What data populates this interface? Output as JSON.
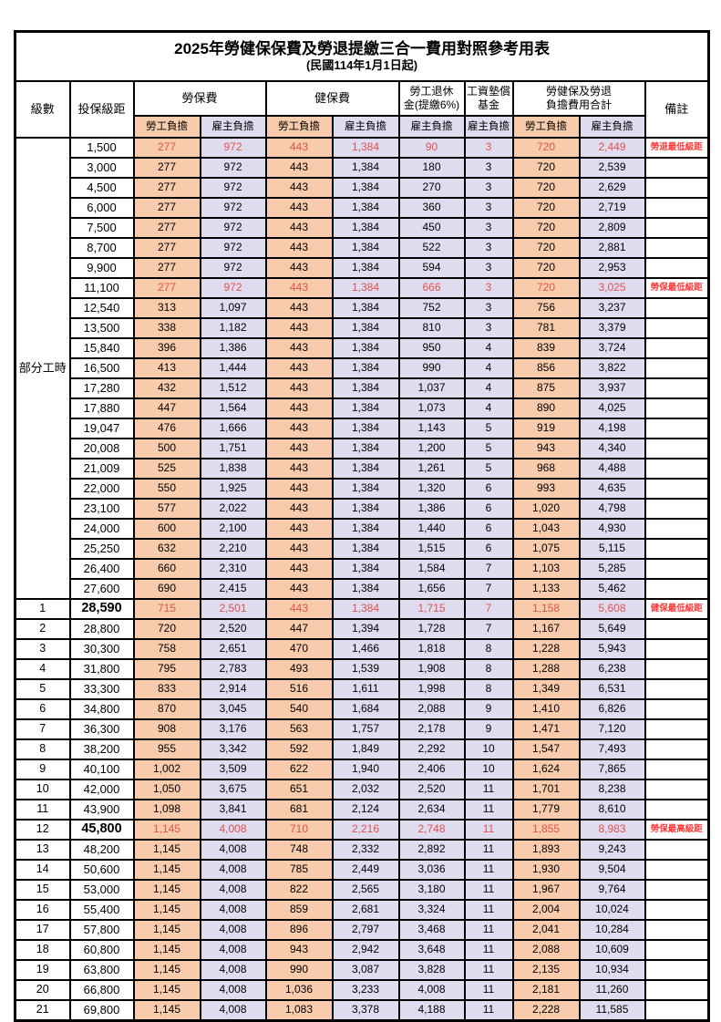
{
  "title": "2025年勞健保保費及勞退提繳三合一費用對照參考用表",
  "subtitle": "(民國114年1月1日起)",
  "header": {
    "level": "級數",
    "bracket": "投保級距",
    "labor_insurance": "勞保費",
    "health_insurance": "健保費",
    "pension_line1": "勞工退休",
    "pension_line2": "金(提繳6%)",
    "wage_fund_line1": "工資墊償",
    "wage_fund_line2": "基金",
    "total_line1": "勞健保及勞退",
    "total_line2": "負擔費用合計",
    "remark": "備註",
    "employee": "勞工負擔",
    "employer": "雇主負擔"
  },
  "part_time_label": "部分工時",
  "part_time_rowspan": 23,
  "colors": {
    "employee_bg": "#F8CBAD",
    "employer_bg": "#DFDCF0",
    "highlight_text": "#E0524E",
    "remark_text": "#FB3A3A"
  },
  "value_columns": [
    {
      "key": "labor-employee",
      "bg": "employee"
    },
    {
      "key": "labor-employer",
      "bg": "employer"
    },
    {
      "key": "health-employee",
      "bg": "employee"
    },
    {
      "key": "health-employer",
      "bg": "employer"
    },
    {
      "key": "pension-employer",
      "bg": "employer"
    },
    {
      "key": "wage-fund-employer",
      "bg": "employer"
    },
    {
      "key": "total-employee",
      "bg": "employee"
    },
    {
      "key": "total-employer",
      "bg": "employer"
    }
  ],
  "rows": [
    {
      "level": null,
      "bracket": "1,500",
      "values": [
        "277",
        "972",
        "443",
        "1,384",
        "90",
        "3",
        "720",
        "2,449"
      ],
      "remark": "勞退最低級距",
      "red": true,
      "bold": false
    },
    {
      "level": null,
      "bracket": "3,000",
      "values": [
        "277",
        "972",
        "443",
        "1,384",
        "180",
        "3",
        "720",
        "2,539"
      ],
      "remark": "",
      "red": false,
      "bold": false
    },
    {
      "level": null,
      "bracket": "4,500",
      "values": [
        "277",
        "972",
        "443",
        "1,384",
        "270",
        "3",
        "720",
        "2,629"
      ],
      "remark": "",
      "red": false,
      "bold": false
    },
    {
      "level": null,
      "bracket": "6,000",
      "values": [
        "277",
        "972",
        "443",
        "1,384",
        "360",
        "3",
        "720",
        "2,719"
      ],
      "remark": "",
      "red": false,
      "bold": false
    },
    {
      "level": null,
      "bracket": "7,500",
      "values": [
        "277",
        "972",
        "443",
        "1,384",
        "450",
        "3",
        "720",
        "2,809"
      ],
      "remark": "",
      "red": false,
      "bold": false
    },
    {
      "level": null,
      "bracket": "8,700",
      "values": [
        "277",
        "972",
        "443",
        "1,384",
        "522",
        "3",
        "720",
        "2,881"
      ],
      "remark": "",
      "red": false,
      "bold": false
    },
    {
      "level": null,
      "bracket": "9,900",
      "values": [
        "277",
        "972",
        "443",
        "1,384",
        "594",
        "3",
        "720",
        "2,953"
      ],
      "remark": "",
      "red": false,
      "bold": false
    },
    {
      "level": null,
      "bracket": "11,100",
      "values": [
        "277",
        "972",
        "443",
        "1,384",
        "666",
        "3",
        "720",
        "3,025"
      ],
      "remark": "勞保最低級距",
      "red": true,
      "bold": false
    },
    {
      "level": null,
      "bracket": "12,540",
      "values": [
        "313",
        "1,097",
        "443",
        "1,384",
        "752",
        "3",
        "756",
        "3,237"
      ],
      "remark": "",
      "red": false,
      "bold": false
    },
    {
      "level": null,
      "bracket": "13,500",
      "values": [
        "338",
        "1,182",
        "443",
        "1,384",
        "810",
        "3",
        "781",
        "3,379"
      ],
      "remark": "",
      "red": false,
      "bold": false
    },
    {
      "level": null,
      "bracket": "15,840",
      "values": [
        "396",
        "1,386",
        "443",
        "1,384",
        "950",
        "4",
        "839",
        "3,724"
      ],
      "remark": "",
      "red": false,
      "bold": false
    },
    {
      "level": null,
      "bracket": "16,500",
      "values": [
        "413",
        "1,444",
        "443",
        "1,384",
        "990",
        "4",
        "856",
        "3,822"
      ],
      "remark": "",
      "red": false,
      "bold": false
    },
    {
      "level": null,
      "bracket": "17,280",
      "values": [
        "432",
        "1,512",
        "443",
        "1,384",
        "1,037",
        "4",
        "875",
        "3,937"
      ],
      "remark": "",
      "red": false,
      "bold": false
    },
    {
      "level": null,
      "bracket": "17,880",
      "values": [
        "447",
        "1,564",
        "443",
        "1,384",
        "1,073",
        "4",
        "890",
        "4,025"
      ],
      "remark": "",
      "red": false,
      "bold": false
    },
    {
      "level": null,
      "bracket": "19,047",
      "values": [
        "476",
        "1,666",
        "443",
        "1,384",
        "1,143",
        "5",
        "919",
        "4,198"
      ],
      "remark": "",
      "red": false,
      "bold": false
    },
    {
      "level": null,
      "bracket": "20,008",
      "values": [
        "500",
        "1,751",
        "443",
        "1,384",
        "1,200",
        "5",
        "943",
        "4,340"
      ],
      "remark": "",
      "red": false,
      "bold": false
    },
    {
      "level": null,
      "bracket": "21,009",
      "values": [
        "525",
        "1,838",
        "443",
        "1,384",
        "1,261",
        "5",
        "968",
        "4,488"
      ],
      "remark": "",
      "red": false,
      "bold": false
    },
    {
      "level": null,
      "bracket": "22,000",
      "values": [
        "550",
        "1,925",
        "443",
        "1,384",
        "1,320",
        "6",
        "993",
        "4,635"
      ],
      "remark": "",
      "red": false,
      "bold": false
    },
    {
      "level": null,
      "bracket": "23,100",
      "values": [
        "577",
        "2,022",
        "443",
        "1,384",
        "1,386",
        "6",
        "1,020",
        "4,798"
      ],
      "remark": "",
      "red": false,
      "bold": false
    },
    {
      "level": null,
      "bracket": "24,000",
      "values": [
        "600",
        "2,100",
        "443",
        "1,384",
        "1,440",
        "6",
        "1,043",
        "4,930"
      ],
      "remark": "",
      "red": false,
      "bold": false
    },
    {
      "level": null,
      "bracket": "25,250",
      "values": [
        "632",
        "2,210",
        "443",
        "1,384",
        "1,515",
        "6",
        "1,075",
        "5,115"
      ],
      "remark": "",
      "red": false,
      "bold": false
    },
    {
      "level": null,
      "bracket": "26,400",
      "values": [
        "660",
        "2,310",
        "443",
        "1,384",
        "1,584",
        "7",
        "1,103",
        "5,285"
      ],
      "remark": "",
      "red": false,
      "bold": false
    },
    {
      "level": null,
      "bracket": "27,600",
      "values": [
        "690",
        "2,415",
        "443",
        "1,384",
        "1,656",
        "7",
        "1,133",
        "5,462"
      ],
      "remark": "",
      "red": false,
      "bold": false
    },
    {
      "level": "1",
      "bracket": "28,590",
      "values": [
        "715",
        "2,501",
        "443",
        "1,384",
        "1,715",
        "7",
        "1,158",
        "5,608"
      ],
      "remark": "健保最低級距",
      "red": true,
      "bold": true
    },
    {
      "level": "2",
      "bracket": "28,800",
      "values": [
        "720",
        "2,520",
        "447",
        "1,394",
        "1,728",
        "7",
        "1,167",
        "5,649"
      ],
      "remark": "",
      "red": false,
      "bold": false
    },
    {
      "level": "3",
      "bracket": "30,300",
      "values": [
        "758",
        "2,651",
        "470",
        "1,466",
        "1,818",
        "8",
        "1,228",
        "5,943"
      ],
      "remark": "",
      "red": false,
      "bold": false
    },
    {
      "level": "4",
      "bracket": "31,800",
      "values": [
        "795",
        "2,783",
        "493",
        "1,539",
        "1,908",
        "8",
        "1,288",
        "6,238"
      ],
      "remark": "",
      "red": false,
      "bold": false
    },
    {
      "level": "5",
      "bracket": "33,300",
      "values": [
        "833",
        "2,914",
        "516",
        "1,611",
        "1,998",
        "8",
        "1,349",
        "6,531"
      ],
      "remark": "",
      "red": false,
      "bold": false
    },
    {
      "level": "6",
      "bracket": "34,800",
      "values": [
        "870",
        "3,045",
        "540",
        "1,684",
        "2,088",
        "9",
        "1,410",
        "6,826"
      ],
      "remark": "",
      "red": false,
      "bold": false
    },
    {
      "level": "7",
      "bracket": "36,300",
      "values": [
        "908",
        "3,176",
        "563",
        "1,757",
        "2,178",
        "9",
        "1,471",
        "7,120"
      ],
      "remark": "",
      "red": false,
      "bold": false
    },
    {
      "level": "8",
      "bracket": "38,200",
      "values": [
        "955",
        "3,342",
        "592",
        "1,849",
        "2,292",
        "10",
        "1,547",
        "7,493"
      ],
      "remark": "",
      "red": false,
      "bold": false
    },
    {
      "level": "9",
      "bracket": "40,100",
      "values": [
        "1,002",
        "3,509",
        "622",
        "1,940",
        "2,406",
        "10",
        "1,624",
        "7,865"
      ],
      "remark": "",
      "red": false,
      "bold": false
    },
    {
      "level": "10",
      "bracket": "42,000",
      "values": [
        "1,050",
        "3,675",
        "651",
        "2,032",
        "2,520",
        "11",
        "1,701",
        "8,238"
      ],
      "remark": "",
      "red": false,
      "bold": false
    },
    {
      "level": "11",
      "bracket": "43,900",
      "values": [
        "1,098",
        "3,841",
        "681",
        "2,124",
        "2,634",
        "11",
        "1,779",
        "8,610"
      ],
      "remark": "",
      "red": false,
      "bold": false
    },
    {
      "level": "12",
      "bracket": "45,800",
      "values": [
        "1,145",
        "4,008",
        "710",
        "2,216",
        "2,748",
        "11",
        "1,855",
        "8,983"
      ],
      "remark": "勞保最高級距",
      "red": true,
      "bold": true
    },
    {
      "level": "13",
      "bracket": "48,200",
      "values": [
        "1,145",
        "4,008",
        "748",
        "2,332",
        "2,892",
        "11",
        "1,893",
        "9,243"
      ],
      "remark": "",
      "red": false,
      "bold": false
    },
    {
      "level": "14",
      "bracket": "50,600",
      "values": [
        "1,145",
        "4,008",
        "785",
        "2,449",
        "3,036",
        "11",
        "1,930",
        "9,504"
      ],
      "remark": "",
      "red": false,
      "bold": false
    },
    {
      "level": "15",
      "bracket": "53,000",
      "values": [
        "1,145",
        "4,008",
        "822",
        "2,565",
        "3,180",
        "11",
        "1,967",
        "9,764"
      ],
      "remark": "",
      "red": false,
      "bold": false
    },
    {
      "level": "16",
      "bracket": "55,400",
      "values": [
        "1,145",
        "4,008",
        "859",
        "2,681",
        "3,324",
        "11",
        "2,004",
        "10,024"
      ],
      "remark": "",
      "red": false,
      "bold": false
    },
    {
      "level": "17",
      "bracket": "57,800",
      "values": [
        "1,145",
        "4,008",
        "896",
        "2,797",
        "3,468",
        "11",
        "2,041",
        "10,284"
      ],
      "remark": "",
      "red": false,
      "bold": false
    },
    {
      "level": "18",
      "bracket": "60,800",
      "values": [
        "1,145",
        "4,008",
        "943",
        "2,942",
        "3,648",
        "11",
        "2,088",
        "10,609"
      ],
      "remark": "",
      "red": false,
      "bold": false
    },
    {
      "level": "19",
      "bracket": "63,800",
      "values": [
        "1,145",
        "4,008",
        "990",
        "3,087",
        "3,828",
        "11",
        "2,135",
        "10,934"
      ],
      "remark": "",
      "red": false,
      "bold": false
    },
    {
      "level": "20",
      "bracket": "66,800",
      "values": [
        "1,145",
        "4,008",
        "1,036",
        "3,233",
        "4,008",
        "11",
        "2,181",
        "11,260"
      ],
      "remark": "",
      "red": false,
      "bold": false
    },
    {
      "level": "21",
      "bracket": "69,800",
      "values": [
        "1,145",
        "4,008",
        "1,083",
        "3,378",
        "4,188",
        "11",
        "2,228",
        "11,585"
      ],
      "remark": "",
      "red": false,
      "bold": false
    }
  ]
}
